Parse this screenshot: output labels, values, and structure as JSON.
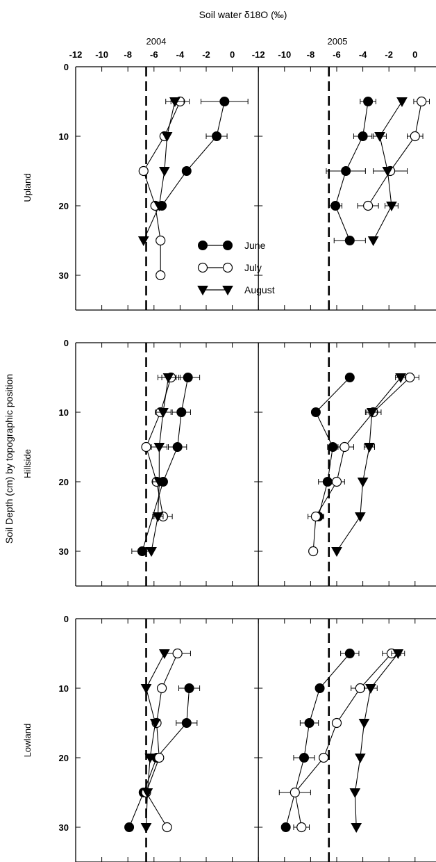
{
  "chart_data": {
    "type": "scatter",
    "title": "Soil water δ18O (‰)",
    "ylabel": "Soil Depth (cm) by topographic position",
    "xlim": [
      -12,
      1.5
    ],
    "ylim": [
      0,
      35
    ],
    "x_ticks": [
      -12,
      -10,
      -8,
      -6,
      -4,
      -2,
      0
    ],
    "y_ticks": [
      0,
      10,
      20,
      30
    ],
    "reference_line_x": -6.6,
    "years": [
      "2004",
      "2005"
    ],
    "positions": [
      "Upland",
      "Hillside",
      "Lowland"
    ],
    "legend": {
      "placement": "inside upper panel, center",
      "entries": [
        {
          "label": "June",
          "marker": "circle-filled"
        },
        {
          "label": "July",
          "marker": "circle-open"
        },
        {
          "label": "August",
          "marker": "triangle-down-filled"
        }
      ]
    },
    "panels": [
      {
        "position": "Upland",
        "year": "2004",
        "series": [
          {
            "month": "June",
            "points": [
              [
                -0.6,
                5,
                1.8
              ],
              [
                -1.2,
                10,
                0.8
              ],
              [
                -3.5,
                15,
                0
              ],
              [
                -5.4,
                20,
                0
              ]
            ]
          },
          {
            "month": "July",
            "points": [
              [
                -4.0,
                5,
                0.7
              ],
              [
                -5.2,
                10,
                0
              ],
              [
                -6.8,
                15,
                0
              ],
              [
                -5.9,
                20,
                0
              ],
              [
                -5.5,
                25,
                0
              ],
              [
                -5.5,
                30,
                0
              ]
            ]
          },
          {
            "month": "August",
            "points": [
              [
                -4.4,
                5,
                0.7
              ],
              [
                -5.0,
                10,
                0
              ],
              [
                -5.2,
                15,
                0
              ],
              [
                -5.6,
                20,
                0
              ],
              [
                -6.8,
                25,
                0
              ]
            ]
          }
        ]
      },
      {
        "position": "Upland",
        "year": "2005",
        "series": [
          {
            "month": "June",
            "points": [
              [
                -3.6,
                5,
                0.6
              ],
              [
                -4.0,
                10,
                0.7
              ],
              [
                -5.3,
                15,
                1.5
              ],
              [
                -6.1,
                20,
                0.5
              ],
              [
                -5.0,
                25,
                1.2
              ]
            ]
          },
          {
            "month": "July",
            "points": [
              [
                0.5,
                5,
                0.6
              ],
              [
                0.0,
                10,
                0.6
              ],
              [
                -1.9,
                15,
                1.3
              ],
              [
                -3.6,
                20,
                0.8
              ]
            ]
          },
          {
            "month": "August",
            "points": [
              [
                -1.0,
                5,
                0
              ],
              [
                -2.7,
                10,
                0.5
              ],
              [
                -2.1,
                15,
                0
              ],
              [
                -1.8,
                20,
                0.5
              ],
              [
                -3.2,
                25,
                0
              ]
            ]
          }
        ]
      },
      {
        "position": "Hillside",
        "year": "2004",
        "series": [
          {
            "month": "June",
            "points": [
              [
                -3.4,
                5,
                0.9
              ],
              [
                -3.9,
                10,
                0.7
              ],
              [
                -4.2,
                15,
                0.7
              ],
              [
                -5.3,
                20,
                0
              ],
              [
                -6.9,
                30,
                0.8
              ]
            ]
          },
          {
            "month": "July",
            "points": [
              [
                -4.7,
                5,
                0.7
              ],
              [
                -5.5,
                10,
                0
              ],
              [
                -6.6,
                15,
                0
              ],
              [
                -5.8,
                20,
                0
              ],
              [
                -5.3,
                25,
                0.7
              ]
            ]
          },
          {
            "month": "August",
            "points": [
              [
                -4.9,
                5,
                0.8
              ],
              [
                -5.3,
                10,
                0.6
              ],
              [
                -5.6,
                15,
                0.6
              ],
              [
                -5.6,
                20,
                0.5
              ],
              [
                -5.7,
                25,
                0.4
              ],
              [
                -6.2,
                30,
                0
              ]
            ]
          }
        ]
      },
      {
        "position": "Hillside",
        "year": "2005",
        "series": [
          {
            "month": "June",
            "points": [
              [
                -5.0,
                5,
                0
              ],
              [
                -7.6,
                10,
                0
              ],
              [
                -6.3,
                15,
                0.4
              ],
              [
                -6.7,
                20,
                0.7
              ],
              [
                -7.4,
                25,
                0.4
              ]
            ]
          },
          {
            "month": "July",
            "points": [
              [
                -0.4,
                5,
                0.7
              ],
              [
                -3.2,
                10,
                0.6
              ],
              [
                -5.4,
                15,
                0.7
              ],
              [
                -6.0,
                20,
                0.6
              ],
              [
                -7.6,
                25,
                0.6
              ],
              [
                -7.8,
                30,
                0
              ]
            ]
          },
          {
            "month": "August",
            "points": [
              [
                -1.1,
                5,
                0.4
              ],
              [
                -3.3,
                10,
                0.4
              ],
              [
                -3.5,
                15,
                0.4
              ],
              [
                -4.0,
                20,
                0
              ],
              [
                -4.2,
                25,
                0
              ],
              [
                -6.0,
                30,
                0
              ]
            ]
          }
        ]
      },
      {
        "position": "Lowland",
        "year": "2004",
        "series": [
          {
            "month": "June",
            "points": [
              [
                -3.3,
                10,
                0.8
              ],
              [
                -3.5,
                15,
                0.8
              ],
              [
                -5.8,
                20,
                0
              ],
              [
                -6.8,
                25,
                0
              ],
              [
                -7.9,
                30,
                0
              ]
            ]
          },
          {
            "month": "July",
            "points": [
              [
                -4.2,
                5,
                1.0
              ],
              [
                -5.4,
                10,
                0
              ],
              [
                -5.8,
                15,
                0
              ],
              [
                -5.6,
                20,
                0
              ],
              [
                -6.6,
                25,
                0
              ],
              [
                -5.0,
                30,
                0
              ]
            ]
          },
          {
            "month": "August",
            "points": [
              [
                -5.2,
                5,
                0
              ],
              [
                -6.6,
                10,
                0
              ],
              [
                -5.9,
                15,
                0
              ],
              [
                -6.3,
                20,
                0
              ],
              [
                -6.5,
                25,
                0
              ],
              [
                -6.6,
                30,
                0
              ]
            ]
          }
        ]
      },
      {
        "position": "Lowland",
        "year": "2005",
        "series": [
          {
            "month": "June",
            "points": [
              [
                -5.0,
                5,
                0.7
              ],
              [
                -7.3,
                10,
                0
              ],
              [
                -8.1,
                15,
                0.7
              ],
              [
                -8.5,
                20,
                0.8
              ],
              [
                -9.9,
                30,
                0
              ]
            ]
          },
          {
            "month": "July",
            "points": [
              [
                -1.8,
                5,
                0.7
              ],
              [
                -4.2,
                10,
                0.7
              ],
              [
                -6.0,
                15,
                0
              ],
              [
                -7.0,
                20,
                0
              ],
              [
                -9.2,
                25,
                1.2
              ],
              [
                -8.7,
                30,
                0.6
              ]
            ]
          },
          {
            "month": "August",
            "points": [
              [
                -1.3,
                5,
                0.5
              ],
              [
                -3.4,
                10,
                0.5
              ],
              [
                -3.9,
                15,
                0
              ],
              [
                -4.2,
                20,
                0
              ],
              [
                -4.6,
                25,
                0
              ],
              [
                -4.5,
                30,
                0
              ]
            ]
          }
        ]
      }
    ]
  }
}
